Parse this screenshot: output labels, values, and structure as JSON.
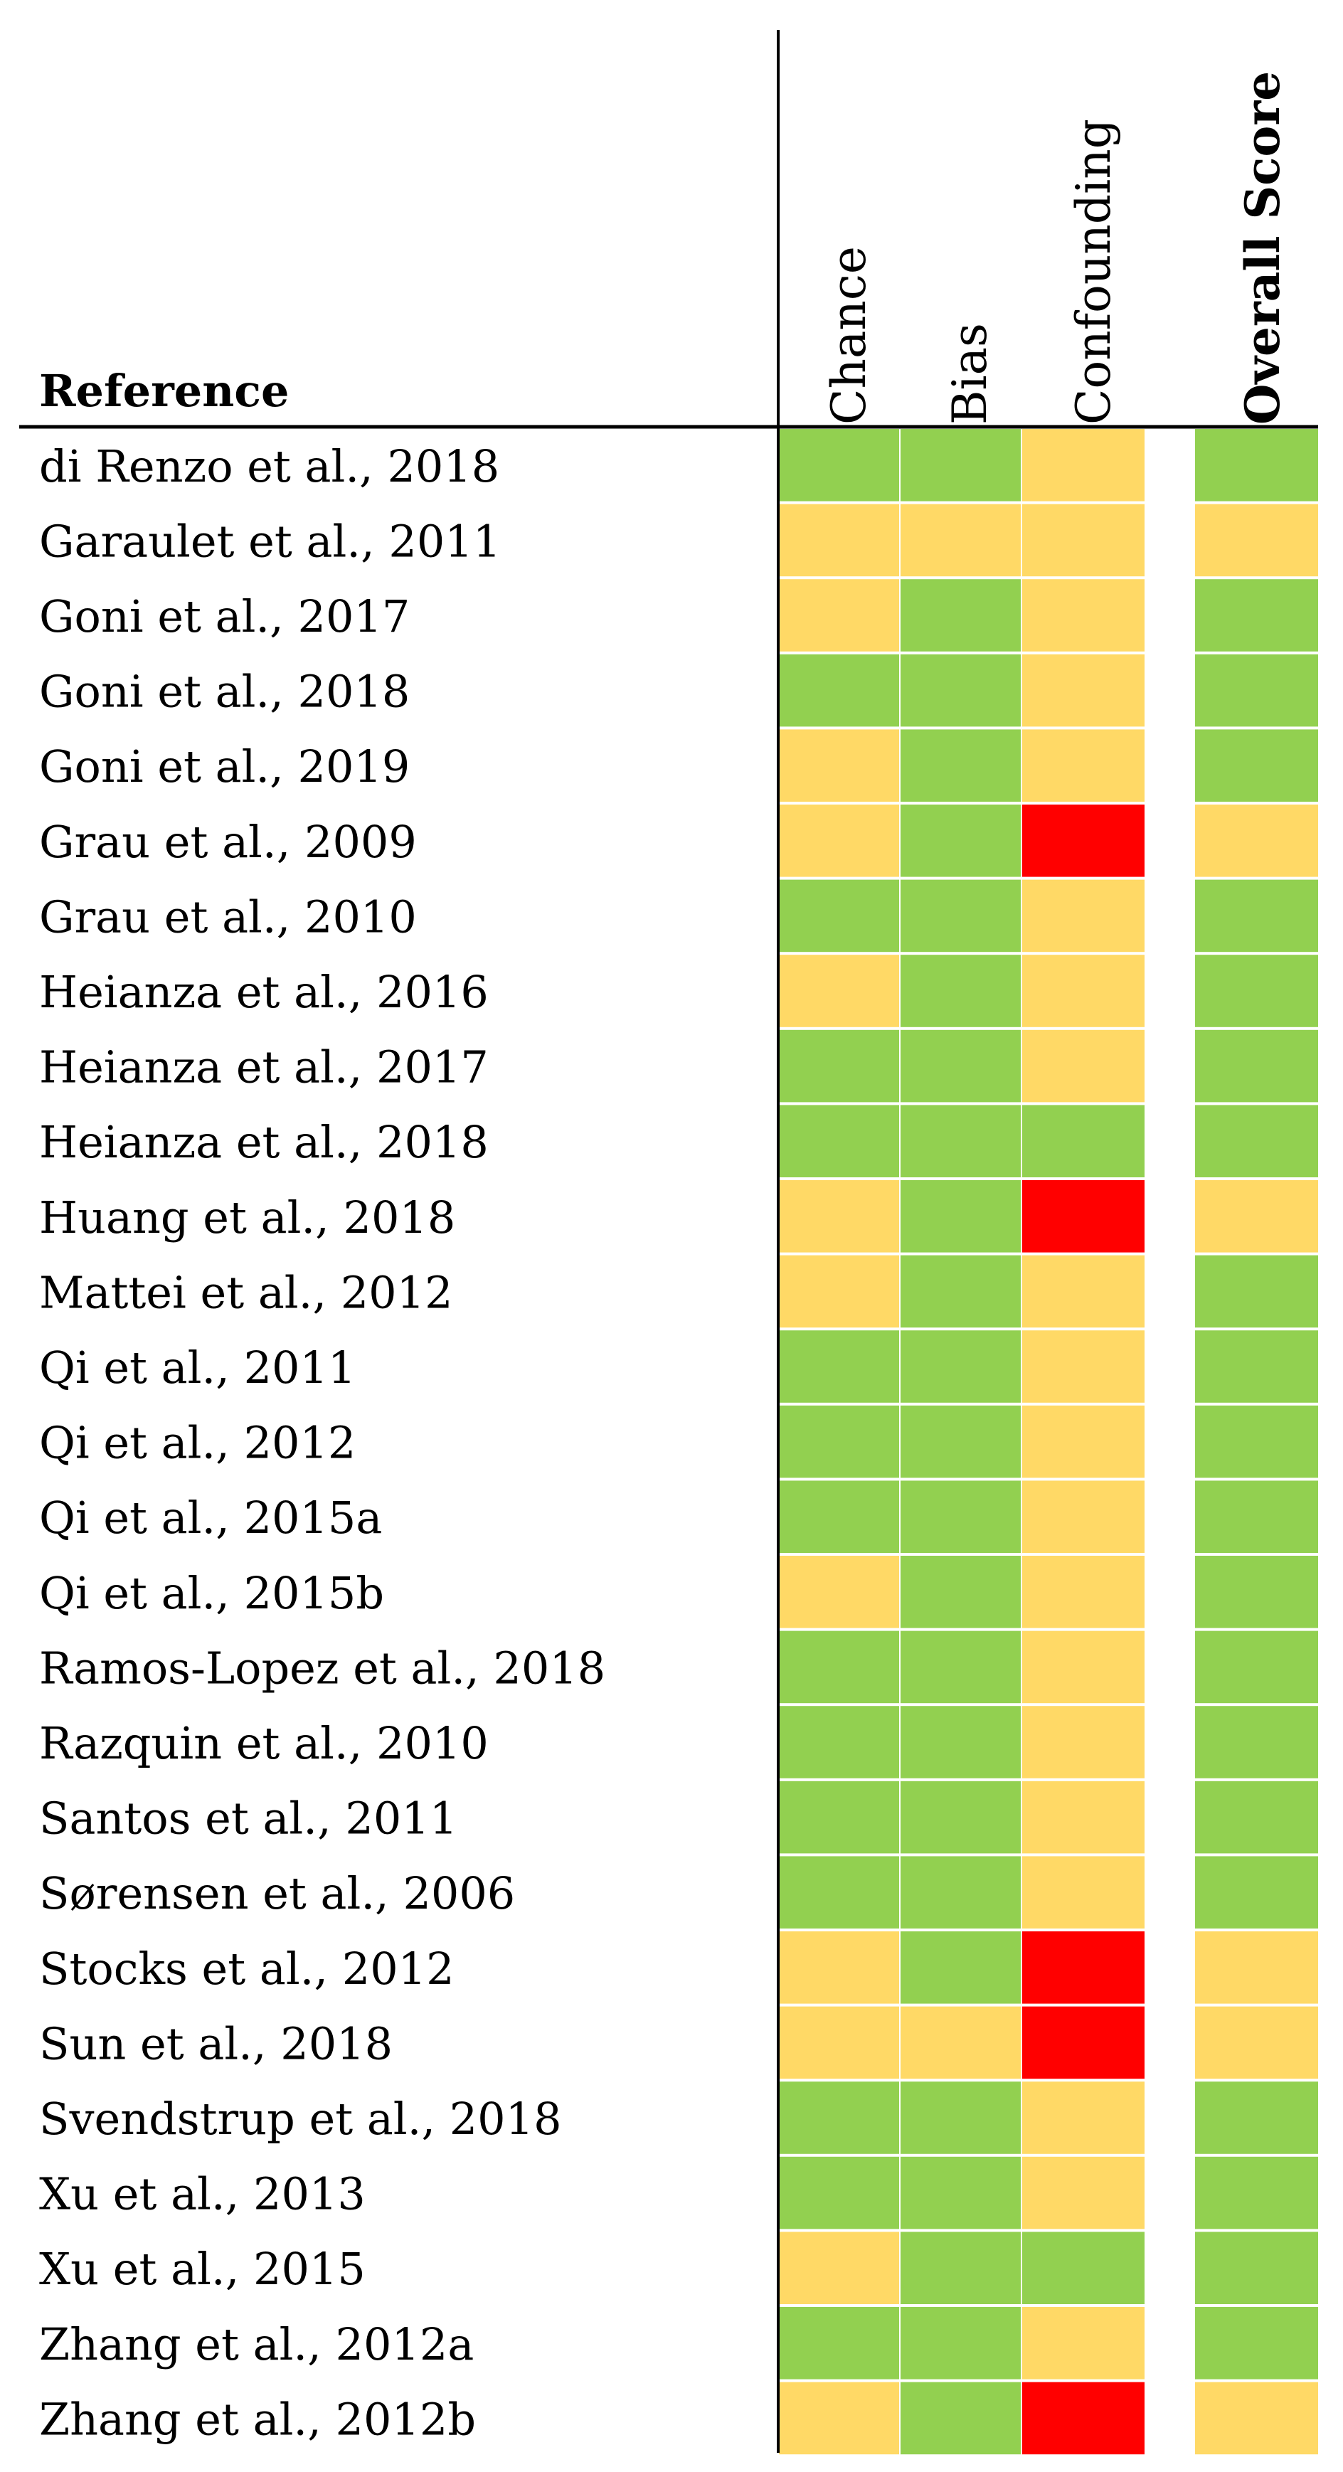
{
  "colors": {
    "low": "#92d050",
    "moderate": "#ffd966",
    "high": "#ff0000"
  },
  "chart_data": {
    "type": "table",
    "row_header": "Reference",
    "columns": [
      "Chance",
      "Bias",
      "Confounding",
      "Overall Score"
    ],
    "rows": [
      {
        "reference": "di Renzo et al., 2018",
        "ratings": [
          "low",
          "low",
          "moderate",
          "low"
        ]
      },
      {
        "reference": "Garaulet et al., 2011",
        "ratings": [
          "moderate",
          "moderate",
          "moderate",
          "moderate"
        ]
      },
      {
        "reference": "Goni et al., 2017",
        "ratings": [
          "moderate",
          "low",
          "moderate",
          "low"
        ]
      },
      {
        "reference": "Goni et al., 2018",
        "ratings": [
          "low",
          "low",
          "moderate",
          "low"
        ]
      },
      {
        "reference": "Goni et al., 2019",
        "ratings": [
          "moderate",
          "low",
          "moderate",
          "low"
        ]
      },
      {
        "reference": "Grau et al., 2009",
        "ratings": [
          "moderate",
          "low",
          "high",
          "moderate"
        ]
      },
      {
        "reference": "Grau et al., 2010",
        "ratings": [
          "low",
          "low",
          "moderate",
          "low"
        ]
      },
      {
        "reference": "Heianza et al., 2016",
        "ratings": [
          "moderate",
          "low",
          "moderate",
          "low"
        ]
      },
      {
        "reference": "Heianza et al., 2017",
        "ratings": [
          "low",
          "low",
          "moderate",
          "low"
        ]
      },
      {
        "reference": "Heianza et al., 2018",
        "ratings": [
          "low",
          "low",
          "low",
          "low"
        ]
      },
      {
        "reference": "Huang et al., 2018",
        "ratings": [
          "moderate",
          "low",
          "high",
          "moderate"
        ]
      },
      {
        "reference": "Mattei et al., 2012",
        "ratings": [
          "moderate",
          "low",
          "moderate",
          "low"
        ]
      },
      {
        "reference": "Qi et al., 2011",
        "ratings": [
          "low",
          "low",
          "moderate",
          "low"
        ]
      },
      {
        "reference": "Qi et al., 2012",
        "ratings": [
          "low",
          "low",
          "moderate",
          "low"
        ]
      },
      {
        "reference": "Qi et al., 2015a",
        "ratings": [
          "low",
          "low",
          "moderate",
          "low"
        ]
      },
      {
        "reference": "Qi et al., 2015b",
        "ratings": [
          "moderate",
          "low",
          "moderate",
          "low"
        ]
      },
      {
        "reference": "Ramos-Lopez et al., 2018",
        "ratings": [
          "low",
          "low",
          "moderate",
          "low"
        ]
      },
      {
        "reference": "Razquin et al., 2010",
        "ratings": [
          "low",
          "low",
          "moderate",
          "low"
        ]
      },
      {
        "reference": "Santos et al., 2011",
        "ratings": [
          "low",
          "low",
          "moderate",
          "low"
        ]
      },
      {
        "reference": "Sørensen et al., 2006",
        "ratings": [
          "low",
          "low",
          "moderate",
          "low"
        ]
      },
      {
        "reference": "Stocks et al., 2012",
        "ratings": [
          "moderate",
          "low",
          "high",
          "moderate"
        ]
      },
      {
        "reference": "Sun et al., 2018",
        "ratings": [
          "moderate",
          "moderate",
          "high",
          "moderate"
        ]
      },
      {
        "reference": "Svendstrup et al., 2018",
        "ratings": [
          "low",
          "low",
          "moderate",
          "low"
        ]
      },
      {
        "reference": "Xu et al., 2013",
        "ratings": [
          "low",
          "low",
          "moderate",
          "low"
        ]
      },
      {
        "reference": "Xu et al., 2015",
        "ratings": [
          "moderate",
          "low",
          "low",
          "low"
        ]
      },
      {
        "reference": "Zhang et al., 2012a",
        "ratings": [
          "low",
          "low",
          "moderate",
          "low"
        ]
      },
      {
        "reference": "Zhang et al., 2012b",
        "ratings": [
          "moderate",
          "low",
          "high",
          "moderate"
        ]
      }
    ]
  }
}
